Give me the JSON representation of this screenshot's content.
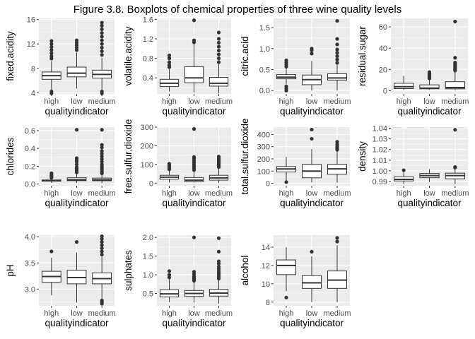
{
  "title": "Figure 3.8. Boxplots of chemical properties of three wine quality levels",
  "colors": {
    "panel": "#ebebeb",
    "grid": "#ffffff",
    "box_fill": "#ffffff",
    "box_stroke": "#333333",
    "text": "#4d4d4d"
  },
  "chart_data": [
    {
      "type": "box",
      "variable": "fixed.acidity",
      "ylabel": "fixed.acidity",
      "xlabel": "qualityindicator",
      "categories": [
        "high",
        "low",
        "medium"
      ],
      "ylim": [
        3.8,
        16.2
      ],
      "yticks": [
        4,
        8,
        12,
        16
      ],
      "ytick_labels": [
        "4",
        "8",
        "12",
        "16"
      ],
      "boxes": [
        {
          "q1": 6.2,
          "median": 6.8,
          "q3": 7.4,
          "lo": 4.5,
          "hi": 9.2,
          "outliers": [
            3.9,
            4.2,
            9.6,
            10.0,
            10.5,
            11.0,
            11.5,
            12.0,
            12.5
          ]
        },
        {
          "q1": 6.6,
          "median": 7.2,
          "q3": 8.2,
          "lo": 4.7,
          "hi": 10.6,
          "outliers": [
            11.0,
            11.4,
            11.8,
            12.2,
            12.6
          ]
        },
        {
          "q1": 6.4,
          "median": 7.0,
          "q3": 7.7,
          "lo": 4.5,
          "hi": 9.7,
          "outliers": [
            3.9,
            4.2,
            10.2,
            10.8,
            11.4,
            12.0,
            12.6,
            13.2,
            13.8,
            14.4,
            15.0,
            15.5
          ]
        }
      ]
    },
    {
      "type": "box",
      "variable": "volatile.acidity",
      "ylabel": "volatile.acidity",
      "xlabel": "qualityindicator",
      "categories": [
        "high",
        "low",
        "medium"
      ],
      "ylim": [
        0.07,
        1.62
      ],
      "yticks": [
        0.4,
        0.8,
        1.2,
        1.6
      ],
      "ytick_labels": [
        "0.4",
        "0.8",
        "1.2",
        "1.6"
      ],
      "boxes": [
        {
          "q1": 0.22,
          "median": 0.29,
          "q3": 0.37,
          "lo": 0.12,
          "hi": 0.58,
          "outliers": [
            0.62,
            0.66,
            0.72,
            0.8,
            0.86
          ]
        },
        {
          "q1": 0.3,
          "median": 0.4,
          "q3": 0.63,
          "lo": 0.1,
          "hi": 1.1,
          "outliers": [
            1.13,
            1.17,
            1.58
          ]
        },
        {
          "q1": 0.23,
          "median": 0.29,
          "q3": 0.41,
          "lo": 0.08,
          "hi": 0.68,
          "outliers": [
            0.72,
            0.8,
            0.88,
            0.96,
            1.04,
            1.12,
            1.2,
            1.33
          ]
        }
      ]
    },
    {
      "type": "box",
      "variable": "citric.acid",
      "ylabel": "citric.acid",
      "xlabel": "qualityindicator",
      "categories": [
        "high",
        "low",
        "medium"
      ],
      "ylim": [
        -0.08,
        1.72
      ],
      "yticks": [
        0.0,
        0.5,
        1.0,
        1.5
      ],
      "ytick_labels": [
        "0.0",
        "0.5",
        "1.0",
        "1.5"
      ],
      "boxes": [
        {
          "q1": 0.28,
          "median": 0.32,
          "q3": 0.38,
          "lo": 0.15,
          "hi": 0.53,
          "outliers": [
            0.0,
            0.05,
            0.1,
            0.57,
            0.62,
            0.67,
            0.72
          ]
        },
        {
          "q1": 0.14,
          "median": 0.26,
          "q3": 0.37,
          "lo": 0.0,
          "hi": 0.7,
          "outliers": [
            0.88,
            0.96,
            1.0
          ]
        },
        {
          "q1": 0.25,
          "median": 0.3,
          "q3": 0.4,
          "lo": 0.0,
          "hi": 0.61,
          "outliers": [
            0.66,
            0.74,
            0.82,
            0.9,
            0.98,
            1.1,
            1.23,
            1.66
          ]
        }
      ]
    },
    {
      "type": "box",
      "variable": "residual.sugar",
      "ylabel": "residual.sugar",
      "xlabel": "qualityindicator",
      "categories": [
        "high",
        "low",
        "medium"
      ],
      "ylim": [
        -3,
        68
      ],
      "yticks": [
        0,
        20,
        40,
        60
      ],
      "ytick_labels": [
        "0",
        "20",
        "40",
        "60"
      ],
      "boxes": [
        {
          "q1": 2.0,
          "median": 3.8,
          "q3": 7.0,
          "lo": 0.8,
          "hi": 14.0,
          "outliers": []
        },
        {
          "q1": 1.8,
          "median": 2.5,
          "q3": 5.5,
          "lo": 0.8,
          "hi": 11.0,
          "outliers": [
            11.6,
            12.5,
            13.5,
            14.5,
            15.5,
            16.5,
            17.5
          ]
        },
        {
          "q1": 1.8,
          "median": 3.0,
          "q3": 8.5,
          "lo": 0.7,
          "hi": 18.5,
          "outliers": [
            19.0,
            20.0,
            21.0,
            22.0,
            23.5,
            25.0,
            26.5,
            31.0,
            65.0
          ]
        }
      ]
    },
    {
      "type": "box",
      "variable": "chlorides",
      "ylabel": "chlorides",
      "xlabel": "qualityindicator",
      "categories": [
        "high",
        "low",
        "medium"
      ],
      "ylim": [
        -0.02,
        0.64
      ],
      "yticks": [
        0.0,
        0.2,
        0.4,
        0.6
      ],
      "ytick_labels": [
        "0.0",
        "0.2",
        "0.4",
        "0.6"
      ],
      "boxes": [
        {
          "q1": 0.032,
          "median": 0.037,
          "q3": 0.045,
          "lo": 0.012,
          "hi": 0.064,
          "outliers": [
            0.07,
            0.08,
            0.09,
            0.1,
            0.12
          ]
        },
        {
          "q1": 0.037,
          "median": 0.048,
          "q3": 0.07,
          "lo": 0.012,
          "hi": 0.12,
          "outliers": [
            0.13,
            0.15,
            0.17,
            0.19,
            0.22,
            0.25,
            0.27,
            0.29,
            0.61
          ]
        },
        {
          "q1": 0.036,
          "median": 0.047,
          "q3": 0.066,
          "lo": 0.009,
          "hi": 0.11,
          "outliers": [
            0.12,
            0.14,
            0.16,
            0.18,
            0.2,
            0.22,
            0.25,
            0.28,
            0.31,
            0.34,
            0.37,
            0.41,
            0.44,
            0.61
          ]
        }
      ]
    },
    {
      "type": "box",
      "variable": "free.sulfur.dioxide",
      "ylabel": "free.sulfur.dioxide",
      "xlabel": "qualityindicator",
      "categories": [
        "high",
        "low",
        "medium"
      ],
      "ylim": [
        -14,
        300
      ],
      "yticks": [
        0,
        100,
        200,
        300
      ],
      "ytick_labels": [
        "0",
        "100",
        "200",
        "300"
      ],
      "boxes": [
        {
          "q1": 21,
          "median": 32,
          "q3": 42,
          "lo": 3,
          "hi": 70,
          "outliers": [
            74,
            80,
            88,
            96,
            104
          ]
        },
        {
          "q1": 8,
          "median": 16,
          "q3": 30,
          "lo": 2,
          "hi": 63,
          "outliers": [
            70,
            80,
            90,
            100,
            110,
            120,
            130,
            140,
            290
          ]
        },
        {
          "q1": 16,
          "median": 28,
          "q3": 42,
          "lo": 1,
          "hi": 82,
          "outliers": [
            86,
            92,
            98,
            104,
            110,
            118,
            126,
            134,
            142
          ]
        }
      ]
    },
    {
      "type": "box",
      "variable": "total.sulfur.dioxide",
      "ylabel": "total.sulfur.dioxide",
      "xlabel": "qualityindicator",
      "categories": [
        "high",
        "low",
        "medium"
      ],
      "ylim": [
        -20,
        460
      ],
      "yticks": [
        0,
        100,
        200,
        300,
        400
      ],
      "ytick_labels": [
        "0",
        "100",
        "200",
        "300",
        "400"
      ],
      "boxes": [
        {
          "q1": 93,
          "median": 117,
          "q3": 137,
          "lo": 18,
          "hi": 215,
          "outliers": [
            10
          ]
        },
        {
          "q1": 45,
          "median": 100,
          "q3": 155,
          "lo": 8,
          "hi": 280,
          "outliers": [
            365,
            440
          ]
        },
        {
          "q1": 75,
          "median": 118,
          "q3": 155,
          "lo": 6,
          "hi": 265,
          "outliers": [
            275,
            285,
            295,
            305,
            320,
            340
          ]
        }
      ]
    },
    {
      "type": "box",
      "variable": "density",
      "ylabel": "density",
      "xlabel": "qualityindicator",
      "categories": [
        "high",
        "low",
        "medium"
      ],
      "ylim": [
        0.986,
        1.041
      ],
      "yticks": [
        0.99,
        1.0,
        1.01,
        1.02,
        1.03,
        1.04
      ],
      "ytick_labels": [
        "0.99",
        "1.00",
        "1.01",
        "1.02",
        "1.03",
        "1.04"
      ],
      "boxes": [
        {
          "q1": 0.9905,
          "median": 0.992,
          "q3": 0.9945,
          "lo": 0.9875,
          "hi": 0.9985,
          "outliers": [
            1.0005
          ]
        },
        {
          "q1": 0.9935,
          "median": 0.9955,
          "q3": 0.9975,
          "lo": 0.9895,
          "hi": 1.0015,
          "outliers": []
        },
        {
          "q1": 0.9925,
          "median": 0.9955,
          "q3": 0.9978,
          "lo": 0.9875,
          "hi": 1.0028,
          "outliers": [
            1.003,
            1.0036,
            1.0385
          ]
        }
      ]
    },
    {
      "type": "box",
      "variable": "pH",
      "ylabel": "pH",
      "xlabel": "qualityindicator",
      "categories": [
        "high",
        "low",
        "medium"
      ],
      "ylim": [
        2.68,
        4.03
      ],
      "yticks": [
        3.0,
        3.5,
        4.0
      ],
      "ytick_labels": [
        "3.0",
        "3.5",
        "4.0"
      ],
      "boxes": [
        {
          "q1": 3.13,
          "median": 3.24,
          "q3": 3.34,
          "lo": 2.88,
          "hi": 3.6,
          "outliers": [
            3.72
          ]
        },
        {
          "q1": 3.1,
          "median": 3.22,
          "q3": 3.36,
          "lo": 2.74,
          "hi": 3.7,
          "outliers": [
            3.9
          ]
        },
        {
          "q1": 3.1,
          "median": 3.2,
          "q3": 3.31,
          "lo": 2.8,
          "hi": 3.62,
          "outliers": [
            2.72,
            2.75,
            2.78,
            3.66,
            3.72,
            3.78,
            3.84,
            3.9,
            3.96,
            4.01
          ]
        }
      ]
    },
    {
      "type": "box",
      "variable": "sulphates",
      "ylabel": "sulphates",
      "xlabel": "qualityindicator",
      "categories": [
        "high",
        "low",
        "medium"
      ],
      "ylim": [
        0.17,
        2.06
      ],
      "yticks": [
        0.5,
        1.0,
        1.5,
        2.0
      ],
      "ytick_labels": [
        "0.5",
        "1.0",
        "1.5",
        "2.0"
      ],
      "boxes": [
        {
          "q1": 0.41,
          "median": 0.49,
          "q3": 0.6,
          "lo": 0.27,
          "hi": 0.88,
          "outliers": [
            0.93,
            1.0,
            1.1
          ]
        },
        {
          "q1": 0.42,
          "median": 0.5,
          "q3": 0.58,
          "lo": 0.26,
          "hi": 0.8,
          "outliers": [
            0.84,
            0.88,
            0.92,
            0.96,
            1.02,
            1.08,
            2.0
          ]
        },
        {
          "q1": 0.43,
          "median": 0.51,
          "q3": 0.61,
          "lo": 0.23,
          "hi": 0.87,
          "outliers": [
            0.9,
            0.95,
            1.0,
            1.05,
            1.1,
            1.16,
            1.22,
            1.3,
            1.36,
            1.62,
            1.98
          ]
        }
      ]
    },
    {
      "type": "box",
      "variable": "alcohol",
      "ylabel": "alcohol",
      "xlabel": "qualityindicator",
      "categories": [
        "high",
        "low",
        "medium"
      ],
      "ylim": [
        7.6,
        15.3
      ],
      "yticks": [
        8,
        10,
        12,
        14
      ],
      "ytick_labels": [
        "8",
        "10",
        "12",
        "14"
      ],
      "boxes": [
        {
          "q1": 11.0,
          "median": 12.0,
          "q3": 12.6,
          "lo": 9.2,
          "hi": 14.0,
          "outliers": [
            8.5
          ]
        },
        {
          "q1": 9.5,
          "median": 10.1,
          "q3": 10.9,
          "lo": 8.0,
          "hi": 13.0,
          "outliers": [
            13.5
          ]
        },
        {
          "q1": 9.5,
          "median": 10.4,
          "q3": 11.4,
          "lo": 8.0,
          "hi": 14.2,
          "outliers": [
            14.6,
            15.0
          ]
        }
      ]
    }
  ]
}
